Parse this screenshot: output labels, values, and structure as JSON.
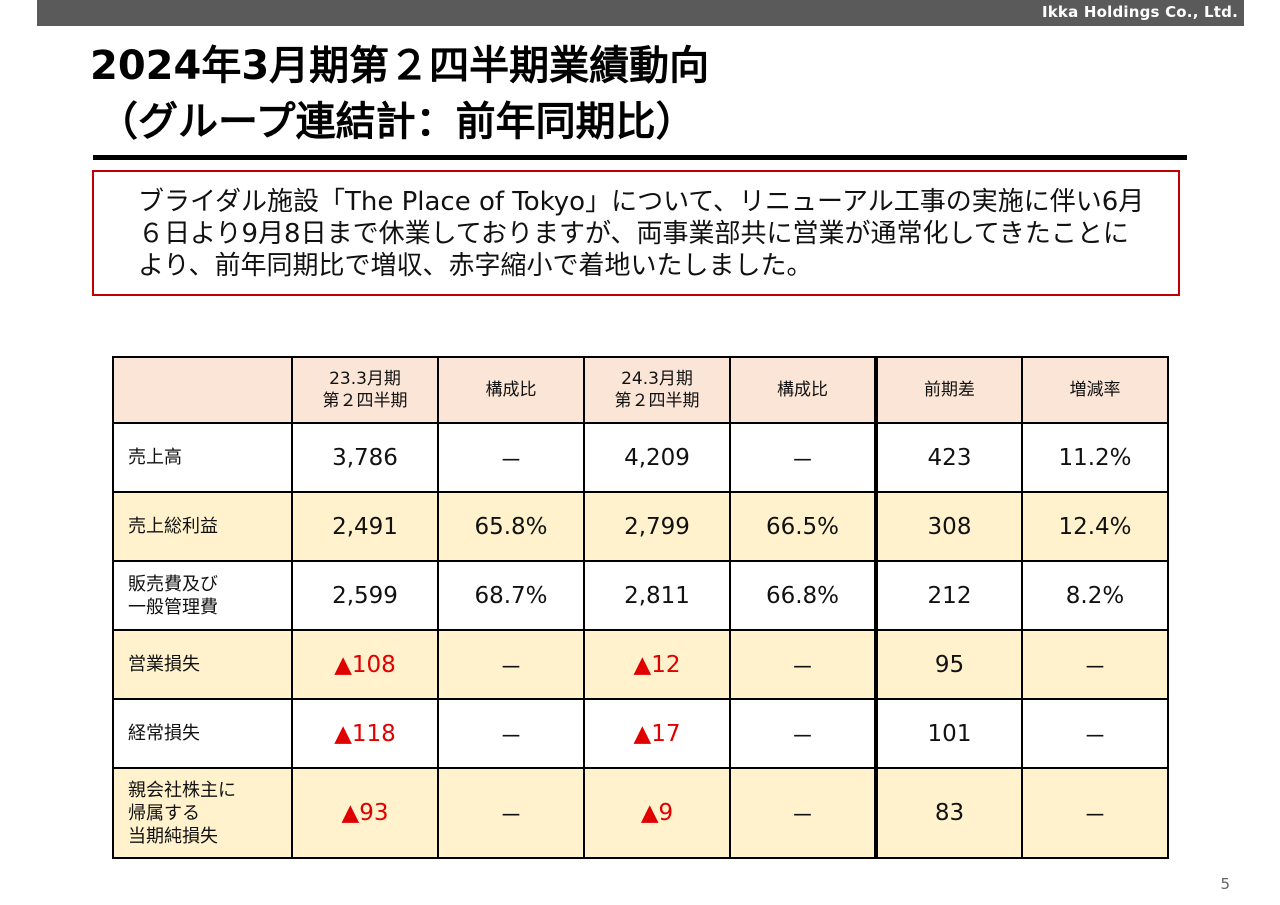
{
  "header": {
    "company": "Ikka Holdings Co., Ltd."
  },
  "title": {
    "line1": "2024年3月期第２四半期業績動向",
    "line2": "（グループ連結計：前年同期比）"
  },
  "notice": "ブライダル施設「The Place of Tokyo」について、リニューアル工事の実施に伴い6月６日より9月8日まで休業しておりますが、両事業部共に営業が通常化してきたことにより、前年同期比で増収、赤字縮小で着地いたしました。",
  "table": {
    "headers": [
      "",
      "23.3月期\n第２四半期",
      "構成比",
      "24.3月期\n第２四半期",
      "構成比",
      "前期差",
      "増減率"
    ],
    "rows": [
      {
        "label": "売上高",
        "cells": [
          "3,786",
          "－",
          "4,209",
          "－",
          "423",
          "11.2%"
        ]
      },
      {
        "label": "売上総利益",
        "cells": [
          "2,491",
          "65.8%",
          "2,799",
          "66.5%",
          "308",
          "12.4%"
        ]
      },
      {
        "label": "販売費及び\n一般管理費",
        "cells": [
          "2,599",
          "68.7%",
          "2,811",
          "66.8%",
          "212",
          "8.2%"
        ]
      },
      {
        "label": "営業損失",
        "cells": [
          "▲108",
          "－",
          "▲12",
          "－",
          "95",
          "－"
        ]
      },
      {
        "label": "経常損失",
        "cells": [
          "▲118",
          "－",
          "▲17",
          "－",
          "101",
          "－"
        ]
      },
      {
        "label": "親会社株主に\n帰属する\n当期純損失",
        "cells": [
          "▲93",
          "－",
          "▲9",
          "－",
          "83",
          "－"
        ]
      }
    ]
  },
  "colors": {
    "header_bg": "#fbe5d6",
    "alt_row_bg": "#fff2cc",
    "negative": "#e00000",
    "notice_border": "#c00000",
    "topbar": "#5a5a5a"
  },
  "page_number": "5"
}
